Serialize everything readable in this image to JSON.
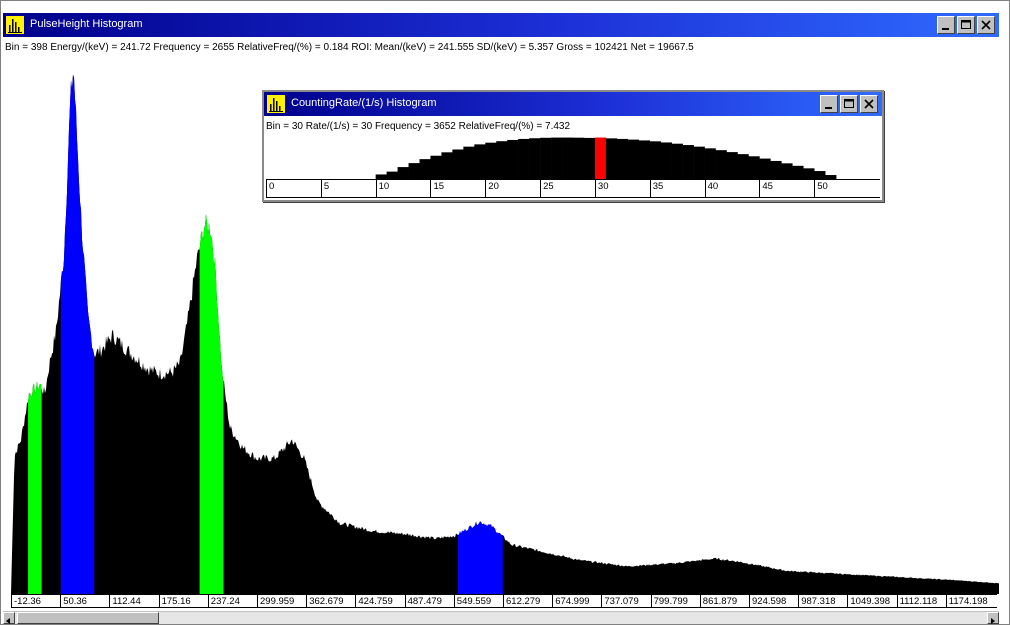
{
  "main_window": {
    "title": "PulseHeight Histogram",
    "status": "Bin = 398  Energy/(keV) = 241.72  Frequency = 2655  RelativeFreq/(%) = 0.184   ROI: Mean/(keV) = 241.555  SD/(keV) = 5.357  Gross = 102421  Net = 19667.5",
    "buttons": [
      "minimize",
      "maximize",
      "close"
    ]
  },
  "child_window": {
    "title": "CountingRate/(1/s) Histogram",
    "status": "Bin = 30  Rate/(1/s) = 30  Frequency = 3652  RelativeFreq/(%) = 7.432",
    "buttons": [
      "minimize",
      "maximize",
      "close"
    ]
  },
  "colors": {
    "title_gradient_start": "#00008a",
    "title_gradient_end": "#2f6bff",
    "histogram": "#000000",
    "roi_green": "#00ff00",
    "roi_blue": "#0000ff",
    "selected_bin": "#ff0000",
    "app_icon": "#fff200"
  },
  "chart_data": [
    {
      "type": "bar",
      "title": "PulseHeight Histogram",
      "xlabel": "",
      "ylabel": "",
      "x_tick_labels": [
        "-12.36",
        "50.36",
        "112.44",
        "175.16",
        "237.24",
        "299.959",
        "362.679",
        "424.759",
        "487.479",
        "549.559",
        "612.279",
        "674.999",
        "737.079",
        "799.799",
        "861.879",
        "924.598",
        "987.318",
        "1049.398",
        "1112.118",
        "1174.198"
      ],
      "xlim": [
        -12.36,
        1226
      ],
      "ylim": [
        0,
        3500
      ],
      "grid": false,
      "series_profile": [
        {
          "x": -12.36,
          "y": 0
        },
        {
          "x": -8,
          "y": 900
        },
        {
          "x": 0,
          "y": 1000
        },
        {
          "x": 10,
          "y": 1300
        },
        {
          "x": 24,
          "y": 1360
        },
        {
          "x": 30,
          "y": 1300
        },
        {
          "x": 36,
          "y": 1500
        },
        {
          "x": 44,
          "y": 1700
        },
        {
          "x": 54,
          "y": 2200
        },
        {
          "x": 62,
          "y": 3200
        },
        {
          "x": 66,
          "y": 3420
        },
        {
          "x": 70,
          "y": 3000
        },
        {
          "x": 76,
          "y": 2400
        },
        {
          "x": 84,
          "y": 1800
        },
        {
          "x": 92,
          "y": 1560
        },
        {
          "x": 100,
          "y": 1580
        },
        {
          "x": 115,
          "y": 1680
        },
        {
          "x": 130,
          "y": 1600
        },
        {
          "x": 145,
          "y": 1530
        },
        {
          "x": 160,
          "y": 1460
        },
        {
          "x": 175,
          "y": 1430
        },
        {
          "x": 190,
          "y": 1440
        },
        {
          "x": 200,
          "y": 1500
        },
        {
          "x": 210,
          "y": 1800
        },
        {
          "x": 220,
          "y": 2150
        },
        {
          "x": 230,
          "y": 2400
        },
        {
          "x": 238,
          "y": 2380
        },
        {
          "x": 244,
          "y": 2100
        },
        {
          "x": 252,
          "y": 1450
        },
        {
          "x": 262,
          "y": 1080
        },
        {
          "x": 278,
          "y": 950
        },
        {
          "x": 296,
          "y": 880
        },
        {
          "x": 318,
          "y": 880
        },
        {
          "x": 340,
          "y": 1000
        },
        {
          "x": 355,
          "y": 880
        },
        {
          "x": 372,
          "y": 600
        },
        {
          "x": 400,
          "y": 460
        },
        {
          "x": 440,
          "y": 410
        },
        {
          "x": 480,
          "y": 390
        },
        {
          "x": 520,
          "y": 360
        },
        {
          "x": 545,
          "y": 380
        },
        {
          "x": 575,
          "y": 470
        },
        {
          "x": 590,
          "y": 440
        },
        {
          "x": 615,
          "y": 320
        },
        {
          "x": 650,
          "y": 280
        },
        {
          "x": 700,
          "y": 220
        },
        {
          "x": 760,
          "y": 180
        },
        {
          "x": 820,
          "y": 200
        },
        {
          "x": 870,
          "y": 230
        },
        {
          "x": 900,
          "y": 210
        },
        {
          "x": 960,
          "y": 150
        },
        {
          "x": 1030,
          "y": 130
        },
        {
          "x": 1100,
          "y": 110
        },
        {
          "x": 1170,
          "y": 90
        },
        {
          "x": 1226,
          "y": 70
        }
      ],
      "roi_regions": [
        {
          "color": "roi_green",
          "x_start": 9,
          "x_end": 26
        },
        {
          "color": "roi_blue",
          "x_start": 50,
          "x_end": 92
        },
        {
          "color": "roi_green",
          "x_start": 224,
          "x_end": 254
        },
        {
          "color": "roi_blue",
          "x_start": 548,
          "x_end": 604
        }
      ]
    },
    {
      "type": "bar",
      "title": "CountingRate/(1/s) Histogram",
      "xlabel": "",
      "ylabel": "",
      "x_tick_labels": [
        "0",
        "5",
        "10",
        "15",
        "20",
        "25",
        "30",
        "35",
        "40",
        "45",
        "50"
      ],
      "xlim": [
        0,
        56
      ],
      "ylim": [
        0,
        3700
      ],
      "categories": [
        10,
        11,
        12,
        13,
        14,
        15,
        16,
        17,
        18,
        19,
        20,
        21,
        22,
        23,
        24,
        25,
        26,
        27,
        28,
        29,
        30,
        31,
        32,
        33,
        34,
        35,
        36,
        37,
        38,
        39,
        40,
        41,
        42,
        43,
        44,
        45,
        46,
        47,
        48,
        49,
        50,
        51
      ],
      "values": [
        400,
        650,
        1050,
        1400,
        1750,
        2050,
        2350,
        2600,
        2850,
        3050,
        3200,
        3330,
        3440,
        3530,
        3590,
        3630,
        3650,
        3650,
        3640,
        3620,
        3652,
        3580,
        3530,
        3470,
        3400,
        3320,
        3220,
        3110,
        2990,
        2850,
        2700,
        2540,
        2370,
        2190,
        2000,
        1800,
        1590,
        1380,
        1160,
        940,
        700,
        350
      ],
      "selected_category": 30
    }
  ]
}
